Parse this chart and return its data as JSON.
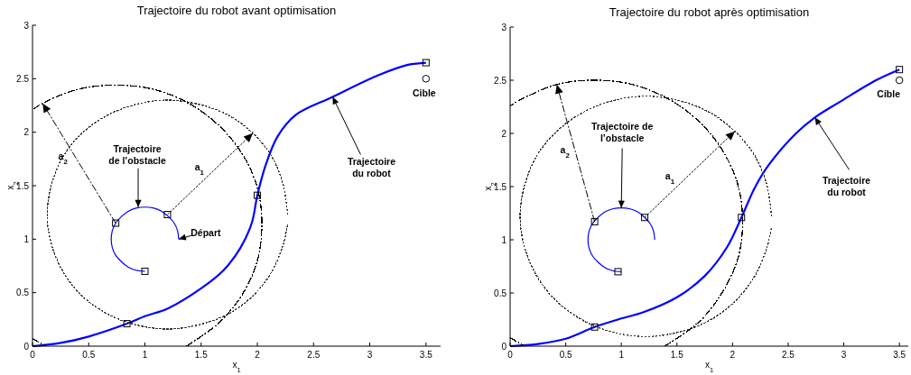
{
  "chart_data": [
    {
      "type": "line",
      "title": "Trajectoire du robot avant optimisation",
      "xlabel": "x$_{1}$",
      "ylabel": "x$_{2}$",
      "xlim": [
        0,
        3.63
      ],
      "ylim": [
        0,
        3
      ],
      "xticks": [
        0,
        0.5,
        1,
        1.5,
        2,
        2.5,
        3,
        3.5
      ],
      "yticks": [
        0,
        0.5,
        1,
        1.5,
        2,
        2.5,
        3
      ],
      "grid": false,
      "series": [
        {
          "color": "#0000ff",
          "x": [
            0,
            0.25,
            0.5,
            0.84,
            1.0,
            1.2,
            1.5,
            1.7,
            1.85,
            1.95,
            2.0,
            2.07,
            2.18,
            2.34,
            2.67,
            3.07,
            3.34,
            3.5
          ],
          "values": [
            0,
            0.03,
            0.09,
            0.21,
            0.28,
            0.35,
            0.54,
            0.71,
            0.92,
            1.15,
            1.41,
            1.68,
            1.96,
            2.16,
            2.33,
            2.53,
            2.63,
            2.65
          ]
        },
        {
          "color": "#0000ff",
          "x": [
            1.3,
            1.29,
            1.26,
            1.21,
            1.15,
            1.08,
            1,
            0.92,
            0.85,
            0.79,
            0.74,
            0.71,
            0.7,
            0.71,
            0.74,
            0.79,
            0.85,
            0.92,
            1
          ],
          "values": [
            1,
            1.08,
            1.15,
            1.21,
            1.26,
            1.29,
            1.3,
            1.29,
            1.26,
            1.21,
            1.15,
            1.08,
            1,
            0.92,
            0.85,
            0.79,
            0.74,
            0.71,
            0.7
          ]
        },
        {
          "color": "#333333",
          "line_style": "dotted",
          "x": [
            2.27,
            2.23,
            2.13,
            1.96,
            1.74,
            1.48,
            1.2,
            0.92,
            0.67,
            0.44,
            0.27,
            0.17,
            0.13,
            0.17,
            0.27,
            0.44,
            0.67,
            0.92,
            1.2,
            1.48,
            1.74,
            1.96,
            2.13,
            2.23,
            2.27
          ],
          "values": [
            1.23,
            1.51,
            1.77,
            1.99,
            2.16,
            2.26,
            2.3,
            2.26,
            2.16,
            1.99,
            1.77,
            1.51,
            1.23,
            0.95,
            0.7,
            0.47,
            0.3,
            0.2,
            0.16,
            0.2,
            0.3,
            0.47,
            0.7,
            0.95,
            1.14
          ]
        },
        {
          "color": "#000000",
          "line_style": "dashed",
          "x": [
            1.37,
            1.66,
            1.87,
            2.0,
            2.04,
            2.0,
            1.87,
            1.66,
            1.39,
            1.08,
            0.74,
            0.4,
            0.09,
            0,
            null,
            0,
            0.12
          ],
          "values": [
            0,
            0.22,
            0.49,
            0.8,
            1.14,
            1.48,
            1.79,
            2.06,
            2.27,
            2.4,
            2.44,
            2.4,
            2.27,
            2.21,
            null,
            0.07,
            0
          ]
        },
        {
          "type": "scatter",
          "marker": "square",
          "color": "#000000",
          "x": [
            1.2,
            0.74,
            1,
            0.84,
            2.0,
            3.5
          ],
          "values": [
            1.23,
            1.15,
            0.7,
            0.21,
            1.41,
            2.65
          ]
        },
        {
          "type": "scatter",
          "marker": "circle",
          "color": "#000000",
          "x": [
            3.5
          ],
          "values": [
            2.5
          ]
        }
      ],
      "annotations": [
        {
          "text": "Trajectoire\nde l’obstacle",
          "x": 0.94,
          "y": 1.3
        },
        {
          "text": "Trajectoire\ndu robot",
          "x": 2.67,
          "y": 2.33
        },
        {
          "text": "Départ",
          "x": 1.3,
          "y": 1.0
        },
        {
          "text": "Cible",
          "x": 3.5,
          "y": 2.5
        },
        "a$_{2}$",
        "a$_{1}$"
      ]
    },
    {
      "type": "line",
      "title": "Trajectoire du robot après optimisation",
      "xlabel": "x$_{1}$",
      "ylabel": "x$_{2}$",
      "xlim": [
        0,
        3.58
      ],
      "ylim": [
        0,
        3
      ],
      "xticks": [
        0,
        0.5,
        1,
        1.5,
        2,
        2.5,
        3,
        3.5
      ],
      "yticks": [
        0,
        0.5,
        1,
        1.5,
        2,
        2.5,
        3
      ],
      "grid": false,
      "series": [
        {
          "color": "#0000ff",
          "x": [
            0,
            0.25,
            0.5,
            0.76,
            1.0,
            1.2,
            1.5,
            1.75,
            1.95,
            2.08,
            2.2,
            2.33,
            2.57,
            2.74,
            2.97,
            3.29,
            3.5
          ],
          "values": [
            0,
            0.02,
            0.07,
            0.18,
            0.26,
            0.32,
            0.46,
            0.66,
            0.93,
            1.21,
            1.49,
            1.71,
            2.0,
            2.15,
            2.3,
            2.5,
            2.6
          ]
        },
        {
          "color": "#0000ff",
          "x": [
            1.3,
            1.29,
            1.26,
            1.21,
            1.15,
            1.08,
            1,
            0.92,
            0.85,
            0.79,
            0.74,
            0.71,
            0.7,
            0.71,
            0.74,
            0.79,
            0.85,
            0.92,
            1
          ],
          "values": [
            1,
            1.08,
            1.15,
            1.21,
            1.26,
            1.29,
            1.3,
            1.29,
            1.26,
            1.21,
            1.15,
            1.08,
            1,
            0.92,
            0.85,
            0.79,
            0.74,
            0.71,
            0.7
          ]
        },
        {
          "color": "#333333",
          "line_style": "dotted",
          "x": [
            2.35,
            2.31,
            2.2,
            2.02,
            1.79,
            1.51,
            1.22,
            0.93,
            0.66,
            0.42,
            0.24,
            0.13,
            0.09,
            0.13,
            0.24,
            0.42,
            0.66,
            0.93,
            1.22,
            1.51,
            1.79,
            2.02,
            2.2,
            2.31,
            2.35
          ],
          "values": [
            1.22,
            1.51,
            1.79,
            2.02,
            2.2,
            2.31,
            2.35,
            2.31,
            2.2,
            2.02,
            1.79,
            1.51,
            1.22,
            0.93,
            0.66,
            0.42,
            0.24,
            0.13,
            0.09,
            0.13,
            0.24,
            0.42,
            0.66,
            0.93,
            1.12
          ]
        },
        {
          "color": "#000000",
          "line_style": "dashed",
          "x": [
            1.39,
            1.7,
            1.91,
            2.05,
            2.09,
            2.05,
            1.91,
            1.7,
            1.43,
            1.1,
            0.76,
            0.42,
            0.1,
            0,
            null,
            0,
            0.13
          ],
          "values": [
            0,
            0.23,
            0.51,
            0.83,
            1.17,
            1.51,
            1.84,
            2.11,
            2.32,
            2.46,
            2.5,
            2.46,
            2.32,
            2.26,
            null,
            0.08,
            0
          ]
        },
        {
          "type": "scatter",
          "marker": "square",
          "color": "#000000",
          "x": [
            1.21,
            0.76,
            0.97,
            0.76,
            2.08,
            3.5
          ],
          "values": [
            1.21,
            1.17,
            0.7,
            0.18,
            1.21,
            2.6
          ]
        },
        {
          "type": "scatter",
          "marker": "circle",
          "color": "#000000",
          "x": [
            3.5
          ],
          "values": [
            2.5
          ]
        }
      ],
      "annotations": [
        {
          "text": "Trajectoire de\nl’obstacle",
          "x": 1.0,
          "y": 1.3
        },
        {
          "text": "Trajectoire\ndu robot",
          "x": 2.74,
          "y": 2.15
        },
        {
          "text": "Cible",
          "x": 3.5,
          "y": 2.5
        },
        "a$_{2}$",
        "a$_{1}$"
      ]
    }
  ]
}
